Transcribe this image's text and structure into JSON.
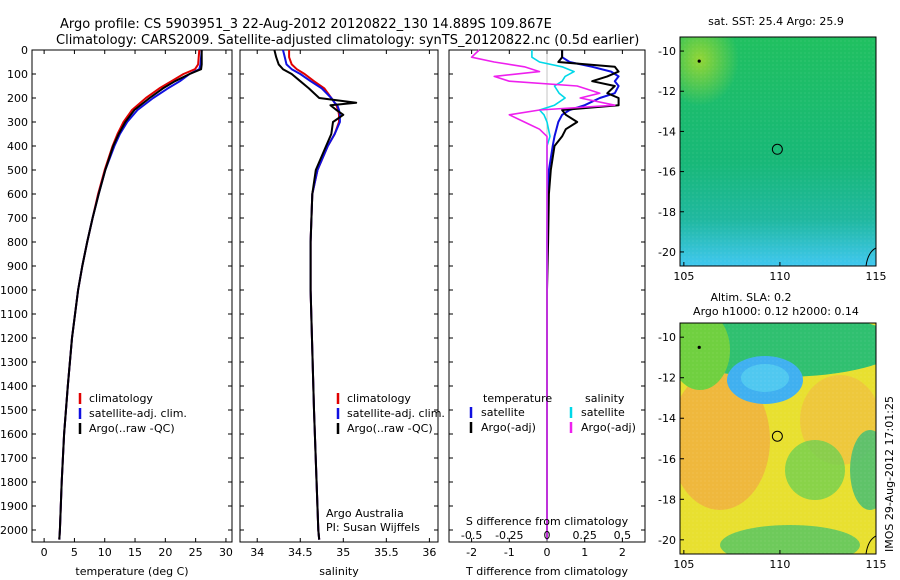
{
  "title_line1": "Argo profile: CS 5903951_3 22-Aug-2012 20120822_130 14.889S 109.867E",
  "title_line2": "Climatology: CARS2009. Satellite-adjusted climatology: synTS_20120822.nc (0.5d earlier)",
  "side_label": "IMOS 29-Aug-2012 17:01:25",
  "colors": {
    "climatology": "#e00000",
    "satellite": "#1010e0",
    "argo": "#000000",
    "sat_salinity": "#00d8e8",
    "argo_salinity": "#ee20ee"
  },
  "chart_data": [
    {
      "type": "line",
      "id": "temperature",
      "xlabel": "temperature (deg C)",
      "ylabel": "",
      "xlim": [
        -2,
        31
      ],
      "ylim": [
        2050,
        0
      ],
      "xticks": [
        "0",
        "5",
        "10",
        "15",
        "20",
        "25",
        "30"
      ],
      "yticks": [
        "0",
        "100",
        "200",
        "300",
        "400",
        "500",
        "600",
        "700",
        "800",
        "900",
        "1000",
        "1100",
        "1200",
        "1300",
        "1400",
        "1500",
        "1600",
        "1700",
        "1800",
        "1900",
        "2000"
      ],
      "legend": [
        "climatology",
        "satellite-adj. clim.",
        "Argo(..raw -QC)"
      ],
      "depth": [
        0,
        60,
        80,
        100,
        130,
        160,
        200,
        250,
        300,
        350,
        400,
        500,
        600,
        700,
        800,
        900,
        1000,
        1200,
        1400,
        1600,
        1800,
        2000,
        2040
      ],
      "series": [
        {
          "name": "climatology",
          "values": [
            25.6,
            25.4,
            24.9,
            23.0,
            21.0,
            19.0,
            16.8,
            14.5,
            13.1,
            12.1,
            11.3,
            10.0,
            8.9,
            8.0,
            7.1,
            6.3,
            5.6,
            4.6,
            3.9,
            3.3,
            2.9,
            2.6,
            2.5
          ]
        },
        {
          "name": "satellite-adj. clim.",
          "values": [
            26.0,
            25.8,
            25.6,
            24.0,
            22.4,
            20.4,
            18.0,
            15.4,
            13.7,
            12.5,
            11.6,
            10.1,
            9.0,
            8.0,
            7.1,
            6.3,
            5.6,
            4.6,
            3.9,
            3.3,
            2.9,
            2.6,
            2.5
          ]
        },
        {
          "name": "Argo(..raw -QC)",
          "values": [
            26.0,
            26.0,
            25.9,
            24.0,
            21.6,
            19.6,
            17.4,
            14.9,
            13.4,
            12.3,
            11.4,
            10.1,
            9.0,
            8.0,
            7.1,
            6.3,
            5.6,
            4.6,
            3.9,
            3.3,
            2.9,
            2.6,
            2.5
          ]
        }
      ]
    },
    {
      "type": "line",
      "id": "salinity",
      "xlabel": "salinity",
      "xlim": [
        33.8,
        36.1
      ],
      "ylim": [
        2050,
        0
      ],
      "xticks": [
        "34",
        "34.5",
        "35",
        "35.5",
        "36"
      ],
      "legend": [
        "climatology",
        "satellite-adj. clim.",
        "Argo(..raw -QC)"
      ],
      "annotation": [
        "Argo Australia",
        "PI: Susan Wijffels"
      ],
      "depth": [
        0,
        30,
        60,
        80,
        100,
        130,
        160,
        200,
        220,
        230,
        250,
        270,
        300,
        350,
        400,
        500,
        600,
        800,
        1000,
        1500,
        2000,
        2040
      ],
      "series": [
        {
          "name": "climatology",
          "values": [
            34.37,
            34.37,
            34.4,
            34.46,
            34.55,
            34.66,
            34.78,
            34.86,
            34.9,
            34.92,
            34.94,
            34.95,
            34.95,
            34.9,
            34.82,
            34.7,
            34.64,
            34.62,
            34.62,
            34.66,
            34.71,
            34.72
          ]
        },
        {
          "name": "satellite-adj. clim.",
          "values": [
            34.3,
            34.32,
            34.34,
            34.4,
            34.5,
            34.62,
            34.75,
            34.86,
            34.9,
            34.93,
            34.95,
            34.96,
            34.96,
            34.9,
            34.82,
            34.7,
            34.64,
            34.62,
            34.62,
            34.66,
            34.71,
            34.72
          ]
        },
        {
          "name": "Argo(..raw -QC)",
          "values": [
            34.2,
            34.22,
            34.25,
            34.3,
            34.4,
            34.5,
            34.6,
            34.72,
            35.15,
            34.85,
            34.92,
            35.0,
            34.88,
            34.86,
            34.8,
            34.68,
            34.64,
            34.62,
            34.62,
            34.66,
            34.71,
            34.72
          ]
        }
      ]
    },
    {
      "type": "line",
      "id": "difference",
      "xlabel": "T difference from climatology",
      "xlabel_top": "S difference from climatology",
      "xlim": [
        -2.6,
        2.6
      ],
      "ylim": [
        2050,
        0
      ],
      "xticks": [
        "-2",
        "-1",
        "0",
        "1",
        "2"
      ],
      "xticks_top": [
        "-0.5",
        "-0.25",
        "0",
        "0.25",
        "0.5"
      ],
      "legend_temperature_title": "temperature",
      "legend_salinity_title": "salinity",
      "legend": [
        "satellite",
        "Argo(-adj)",
        "satellite",
        "Argo(-adj)"
      ],
      "depth": [
        0,
        30,
        50,
        70,
        90,
        110,
        130,
        150,
        180,
        200,
        230,
        250,
        270,
        300,
        330,
        360,
        400,
        500,
        600,
        800,
        1000,
        1200,
        1500,
        2000,
        2040
      ],
      "series": [
        {
          "name": "T satellite",
          "values": [
            0.4,
            0.4,
            0.6,
            1.2,
            1.7,
            1.9,
            1.8,
            1.9,
            1.8,
            1.4,
            1.0,
            0.6,
            0.4,
            0.3,
            0.25,
            0.2,
            0.15,
            0.05,
            0.02,
            0.0,
            0.0,
            0.0,
            0.0,
            0.0,
            0.0
          ]
        },
        {
          "name": "T Argo(-adj)",
          "values": [
            0.4,
            0.4,
            0.3,
            1.8,
            1.9,
            1.6,
            1.2,
            1.8,
            1.6,
            1.9,
            1.9,
            0.4,
            0.5,
            0.8,
            0.5,
            0.4,
            0.2,
            0.1,
            0.05,
            0.03,
            0.0,
            0.0,
            0.0,
            0.0,
            0.0
          ]
        },
        {
          "name": "S satellite",
          "values": [
            -0.1,
            -0.1,
            -0.05,
            0.1,
            0.18,
            0.12,
            0.1,
            0.05,
            0.08,
            0.12,
            0.05,
            -0.05,
            -0.02,
            0.0,
            0.01,
            0.02,
            0.0,
            0.0,
            0.0,
            0.0,
            0.0,
            0.0,
            0.0,
            0.0,
            0.0
          ]
        },
        {
          "name": "S Argo(-adj)",
          "values": [
            -0.45,
            -0.5,
            -0.35,
            -0.15,
            -0.05,
            -0.35,
            -0.25,
            0.2,
            0.35,
            0.22,
            0.45,
            -0.05,
            -0.25,
            -0.15,
            -0.05,
            0.0,
            0.0,
            0.0,
            0.0,
            0.0,
            0.0,
            0.0,
            0.0,
            0.0,
            0.0
          ]
        }
      ]
    },
    {
      "type": "heatmap",
      "id": "sst_map",
      "title": "sat. SST: 25.4  Argo: 25.9",
      "xlim": [
        104.8,
        115
      ],
      "ylim": [
        -20.7,
        -9.3
      ],
      "xticks": [
        "105",
        "110",
        "115"
      ],
      "yticks": [
        "-10",
        "-12",
        "-14",
        "-16",
        "-18",
        "-20"
      ],
      "argo_position": [
        109.867,
        -14.889
      ]
    },
    {
      "type": "heatmap",
      "id": "sla_map",
      "title": "Altim. SLA: 0.2",
      "subtitle": "Argo h1000: 0.12 h2000: 0.14",
      "xlim": [
        104.8,
        115
      ],
      "ylim": [
        -20.7,
        -9.3
      ],
      "xticks": [
        "105",
        "110",
        "115"
      ],
      "yticks": [
        "-10",
        "-12",
        "-14",
        "-16",
        "-18",
        "-20"
      ],
      "argo_position": [
        109.867,
        -14.889
      ]
    }
  ]
}
